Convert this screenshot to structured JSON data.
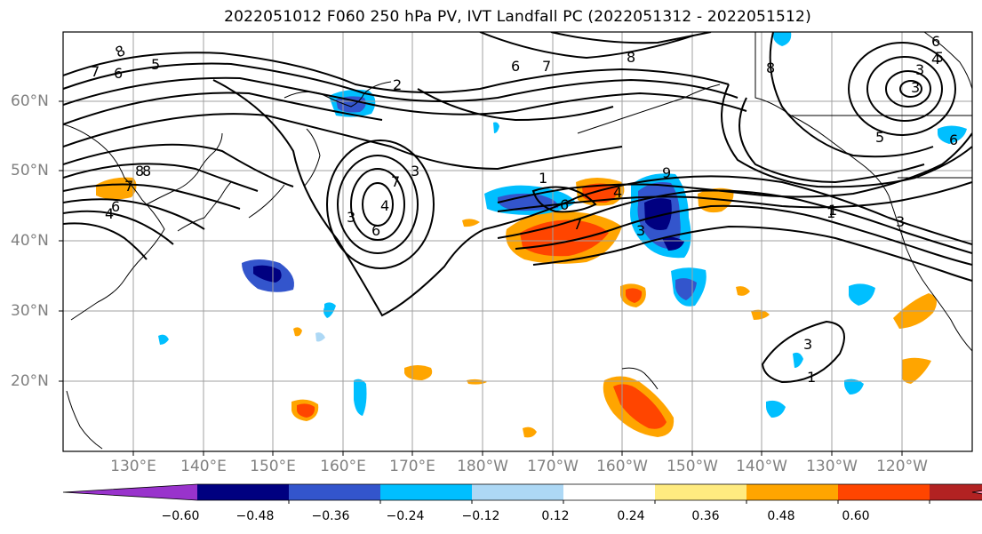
{
  "title": "2022051012 F060 250 hPa PV, IVT Landfall PC (2022051312 - 2022051512)",
  "lat_labels": [
    "60°N",
    "50°N",
    "40°N",
    "30°N",
    "20°N"
  ],
  "lon_labels": [
    "130°E",
    "140°E",
    "150°E",
    "160°E",
    "170°E",
    "180°W",
    "170°W",
    "160°W",
    "150°W",
    "140°W",
    "130°W",
    "120°W"
  ],
  "colorbar": {
    "colors": [
      "#9933cc",
      "#000080",
      "#3355cc",
      "#00bfff",
      "#add8f5",
      "#ffffff",
      "#ffeb80",
      "#ffa500",
      "#ff4500",
      "#b22222",
      "#ff88aa"
    ],
    "labels": [
      "−0.60",
      "−0.48",
      "−0.36",
      "−0.24",
      "−0.12",
      "0.12",
      "0.24",
      "0.36",
      "0.48",
      "0.60"
    ]
  },
  "contour_labels": [
    "8",
    "7",
    "6",
    "5",
    "6",
    "7",
    "8",
    "2",
    "1",
    "3",
    "4",
    "5",
    "6",
    "7",
    "8",
    "3",
    "3",
    "4",
    "6",
    "1",
    "6",
    "7",
    "4",
    "8",
    "9",
    "3",
    "1",
    "3",
    "6",
    "5",
    "4",
    "8",
    "7",
    "6",
    "3",
    "3",
    "1"
  ]
}
